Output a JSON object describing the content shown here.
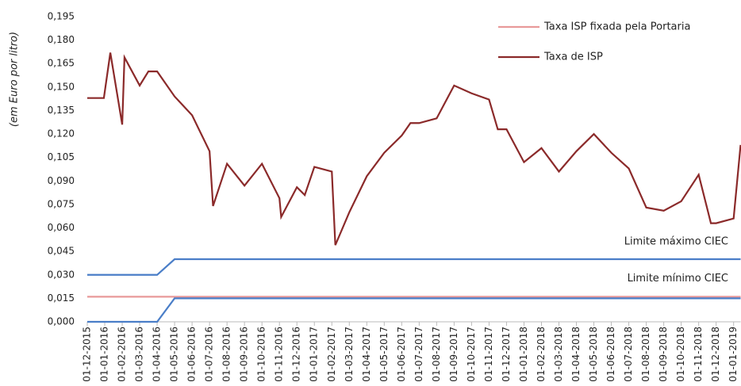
{
  "chart_data": {
    "type": "line",
    "y_label": "(em Euro por litro)",
    "xlim": [
      0,
      37.4
    ],
    "xticks": [
      {
        "value": 0,
        "label": "01-12-2015"
      },
      {
        "value": 1,
        "label": "01-01-2016"
      },
      {
        "value": 2,
        "label": "01-02-2016"
      },
      {
        "value": 3,
        "label": "01-03-2016"
      },
      {
        "value": 4,
        "label": "01-04-2016"
      },
      {
        "value": 5,
        "label": "01-05-2016"
      },
      {
        "value": 6,
        "label": "01-06-2016"
      },
      {
        "value": 7,
        "label": "01-07-2016"
      },
      {
        "value": 8,
        "label": "01-08-2016"
      },
      {
        "value": 9,
        "label": "01-09-2016"
      },
      {
        "value": 10,
        "label": "01-10-2016"
      },
      {
        "value": 11,
        "label": "01-11-2016"
      },
      {
        "value": 12,
        "label": "01-12-2016"
      },
      {
        "value": 13,
        "label": "01-01-2017"
      },
      {
        "value": 14,
        "label": "01-02-2017"
      },
      {
        "value": 15,
        "label": "01-03-2017"
      },
      {
        "value": 16,
        "label": "01-04-2017"
      },
      {
        "value": 17,
        "label": "01-05-2017"
      },
      {
        "value": 18,
        "label": "01-06-2017"
      },
      {
        "value": 19,
        "label": "01-07-2017"
      },
      {
        "value": 20,
        "label": "01-08-2017"
      },
      {
        "value": 21,
        "label": "01-09-2017"
      },
      {
        "value": 22,
        "label": "01-10-2017"
      },
      {
        "value": 23,
        "label": "01-11-2017"
      },
      {
        "value": 24,
        "label": "01-12-2017"
      },
      {
        "value": 25,
        "label": "01-01-2018"
      },
      {
        "value": 26,
        "label": "01-02-2018"
      },
      {
        "value": 27,
        "label": "01-03-2018"
      },
      {
        "value": 28,
        "label": "01-04-2018"
      },
      {
        "value": 29,
        "label": "01-05-2018"
      },
      {
        "value": 30,
        "label": "01-06-2018"
      },
      {
        "value": 31,
        "label": "01-07-2018"
      },
      {
        "value": 32,
        "label": "01-08-2018"
      },
      {
        "value": 33,
        "label": "01-09-2018"
      },
      {
        "value": 34,
        "label": "01-10-2018"
      },
      {
        "value": 35,
        "label": "01-11-2018"
      },
      {
        "value": 36,
        "label": "01-12-2018"
      },
      {
        "value": 37,
        "label": "01-01-2019"
      }
    ],
    "ylim": [
      0,
      0.195
    ],
    "yticks": [
      {
        "value": 0,
        "label": "0,000"
      },
      {
        "value": 0.015,
        "label": "0,015"
      },
      {
        "value": 0.03,
        "label": "0,030"
      },
      {
        "value": 0.045,
        "label": "0,045"
      },
      {
        "value": 0.06,
        "label": "0,060"
      },
      {
        "value": 0.075,
        "label": "0,075"
      },
      {
        "value": 0.09,
        "label": "0,090"
      },
      {
        "value": 0.105,
        "label": "0,105"
      },
      {
        "value": 0.12,
        "label": "0,120"
      },
      {
        "value": 0.135,
        "label": "0,135"
      },
      {
        "value": 0.15,
        "label": "0,150"
      },
      {
        "value": 0.165,
        "label": "0,165"
      },
      {
        "value": 0.18,
        "label": "0,180"
      },
      {
        "value": 0.195,
        "label": "0,195"
      }
    ],
    "series": [
      {
        "name": "Taxa ISP fixada pela Portaria",
        "color": "#e89a9a",
        "legend": true,
        "x": [
          0,
          37.4
        ],
        "values": [
          0.016,
          0.016
        ]
      },
      {
        "name": "Taxa de ISP",
        "color": "#8b2a2a",
        "legend": true,
        "x": [
          0,
          0.95,
          1.32,
          2.0,
          2.13,
          3,
          3.5,
          4,
          5,
          6,
          7,
          7.2,
          8,
          9,
          10,
          11,
          11.1,
          12,
          12.45,
          13,
          14,
          14.2,
          15,
          16,
          17,
          18,
          18.5,
          19,
          20,
          21,
          22,
          23,
          23.5,
          24,
          25,
          26,
          27,
          28,
          29,
          30,
          31,
          32,
          33,
          34,
          35,
          35.7,
          36,
          37,
          37.4
        ],
        "values": [
          0.143,
          0.143,
          0.172,
          0.126,
          0.169,
          0.151,
          0.16,
          0.16,
          0.144,
          0.132,
          0.109,
          0.074,
          0.101,
          0.087,
          0.101,
          0.079,
          0.067,
          0.086,
          0.081,
          0.099,
          0.096,
          0.049,
          0.07,
          0.093,
          0.108,
          0.119,
          0.127,
          0.127,
          0.13,
          0.151,
          0.146,
          0.142,
          0.123,
          0.123,
          0.102,
          0.111,
          0.096,
          0.109,
          0.12,
          0.108,
          0.098,
          0.073,
          0.071,
          0.077,
          0.094,
          0.063,
          0.063,
          0.066,
          0.113
        ]
      },
      {
        "name": "Limite máximo CIEC",
        "color": "#4a7ec8",
        "legend": false,
        "x": [
          0,
          4,
          5,
          37.4
        ],
        "values": [
          0.03,
          0.03,
          0.04,
          0.04
        ]
      },
      {
        "name": "Limite mínimo CIEC",
        "color": "#4a7ec8",
        "legend": false,
        "x": [
          0,
          4,
          5,
          37.4
        ],
        "values": [
          0,
          0,
          0.015,
          0.015
        ]
      }
    ]
  }
}
